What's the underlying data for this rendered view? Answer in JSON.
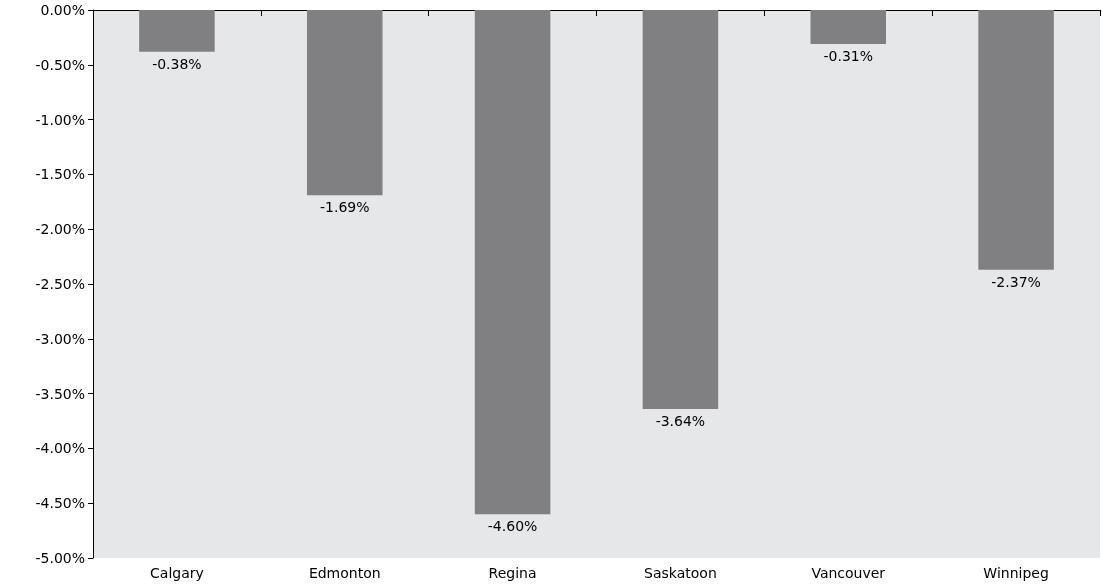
{
  "chart_data": {
    "type": "bar",
    "categories": [
      "Calgary",
      "Edmonton",
      "Regina",
      "Saskatoon",
      "Vancouver",
      "Winnipeg"
    ],
    "values": [
      -0.38,
      -1.69,
      -4.6,
      -3.64,
      -0.31,
      -2.37
    ],
    "value_labels": [
      "-0.38%",
      "-1.69%",
      "-4.60%",
      "-3.64%",
      "-0.31%",
      "-2.37%"
    ],
    "color": "#808083",
    "ylim": [
      -5,
      0
    ],
    "yticks": [
      {
        "value": 0,
        "label": "0.00%"
      },
      {
        "value": -0.5,
        "label": "-0.50%"
      },
      {
        "value": -1,
        "label": "-1.00%"
      },
      {
        "value": -1.5,
        "label": "-1.50%"
      },
      {
        "value": -2,
        "label": "-2.00%"
      },
      {
        "value": -2.5,
        "label": "-2.50%"
      },
      {
        "value": -3,
        "label": "-3.00%"
      },
      {
        "value": -3.5,
        "label": "-3.50%"
      },
      {
        "value": -4,
        "label": "-4.00%"
      },
      {
        "value": -4.5,
        "label": "-4.50%"
      },
      {
        "value": -5,
        "label": "-5.00%"
      }
    ],
    "grid": false
  }
}
